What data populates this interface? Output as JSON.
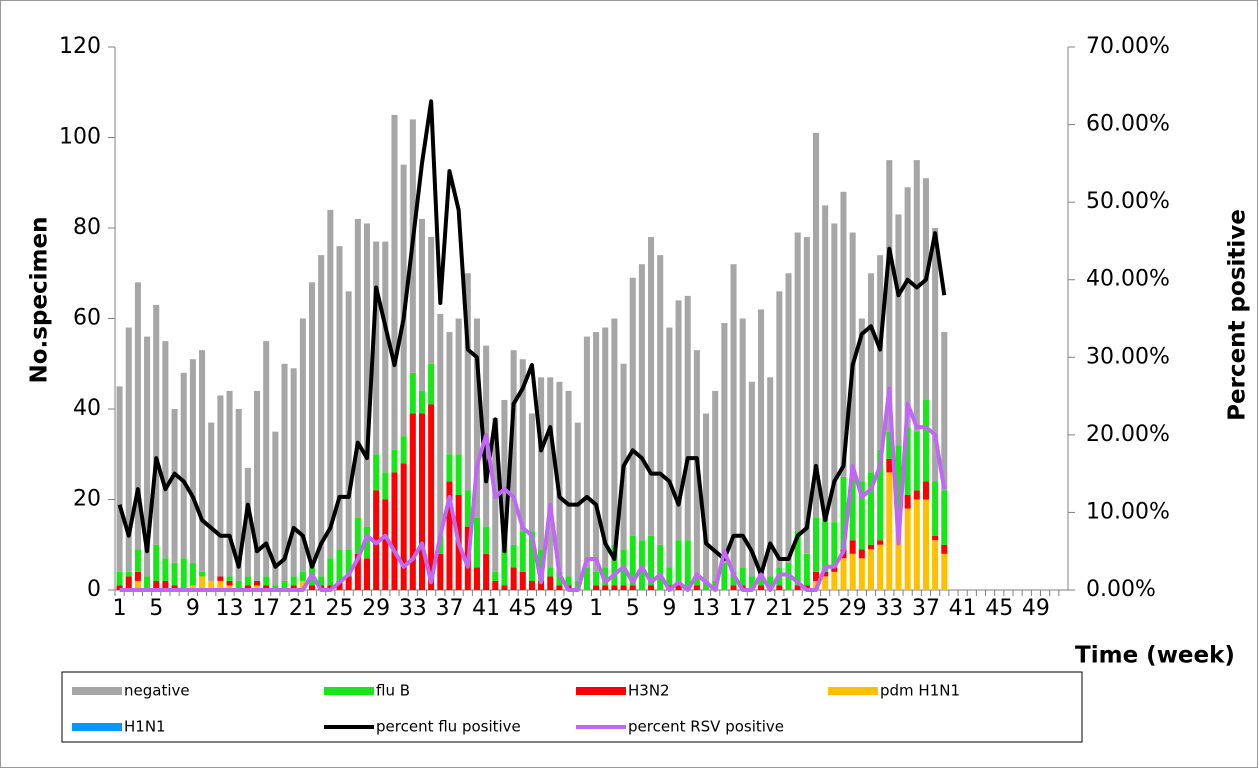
{
  "chart_data": {
    "type": "bar",
    "y_label": "No.specimen",
    "y2_label": "Percent positive",
    "x_label": "Time (week)",
    "categories": [
      "1",
      null,
      null,
      null,
      "5",
      null,
      null,
      null,
      "9",
      null,
      null,
      null,
      "13",
      null,
      null,
      null,
      "17",
      null,
      null,
      null,
      "21",
      null,
      null,
      null,
      "25",
      null,
      null,
      null,
      "29",
      null,
      null,
      null,
      "33",
      null,
      null,
      null,
      "37",
      null,
      null,
      null,
      "41",
      null,
      null,
      null,
      "45",
      null,
      null,
      null,
      "49",
      null,
      null,
      null,
      "1",
      null,
      null,
      null,
      "5",
      null,
      null,
      null,
      "9",
      null,
      null,
      null,
      "13",
      null,
      null,
      null,
      "17",
      null,
      null,
      null,
      "21",
      null,
      null,
      null,
      "25",
      null,
      null,
      null,
      "29",
      null,
      null,
      null,
      "33",
      null,
      null,
      null,
      "37",
      null,
      null,
      null,
      "41",
      null,
      null,
      null,
      "45",
      null,
      null,
      null,
      "49",
      null,
      null,
      null
    ],
    "ylim": [
      0,
      120
    ],
    "yticks": [
      0,
      20,
      40,
      60,
      80,
      100,
      120
    ],
    "y2lim": [
      0,
      70
    ],
    "y2ticks": [
      {
        "value": 0,
        "label": "0.00%"
      },
      {
        "value": 10,
        "label": "10.00%"
      },
      {
        "value": 20,
        "label": "20.00%"
      },
      {
        "value": 30,
        "label": "30.00%"
      },
      {
        "value": 40,
        "label": "40.00%"
      },
      {
        "value": 50,
        "label": "50.00%"
      },
      {
        "value": 60,
        "label": "60.00%"
      },
      {
        "value": 70,
        "label": "70.00%"
      }
    ],
    "stacked": true,
    "legend": "bottom",
    "series": [
      {
        "name": "negative",
        "type": "bar",
        "color": "#a6a6a6",
        "values": [
          41,
          54,
          59,
          53,
          53,
          48,
          34,
          41,
          45,
          49,
          35,
          40,
          41,
          38,
          24,
          42,
          52,
          34,
          48,
          46,
          56,
          63,
          71,
          77,
          67,
          57,
          66,
          67,
          47,
          51,
          74,
          60,
          56,
          38,
          28,
          49,
          27,
          30,
          48,
          44,
          40,
          34,
          33,
          43,
          38,
          26,
          38,
          42,
          42,
          41,
          35,
          51,
          53,
          53,
          50,
          41,
          57,
          61,
          66,
          64,
          53,
          53,
          54,
          50,
          37,
          42,
          53,
          68,
          55,
          43,
          59,
          44,
          61,
          64,
          66,
          70,
          85,
          69,
          66,
          63,
          53,
          36,
          44,
          43,
          60,
          51,
          53,
          60,
          49,
          56,
          35,
          null,
          null,
          null,
          null,
          null,
          null,
          null,
          null,
          null,
          null,
          null,
          null,
          null
        ]
      },
      {
        "name": "flu B",
        "type": "bar",
        "color": "#19e619",
        "values": [
          3,
          1,
          5,
          3,
          8,
          5,
          5,
          7,
          5,
          1,
          0,
          0,
          1,
          2,
          2,
          0,
          2,
          1,
          2,
          2,
          2,
          4,
          2,
          6,
          7,
          6,
          8,
          7,
          8,
          6,
          5,
          6,
          9,
          5,
          9,
          4,
          6,
          9,
          8,
          11,
          6,
          2,
          8,
          5,
          9,
          11,
          7,
          2,
          3,
          2,
          2,
          5,
          3,
          4,
          9,
          8,
          11,
          11,
          11,
          10,
          4,
          10,
          11,
          2,
          2,
          2,
          6,
          3,
          4,
          3,
          2,
          3,
          4,
          6,
          12,
          7,
          12,
          12,
          10,
          16,
          15,
          15,
          16,
          20,
          6,
          16,
          15,
          13,
          18,
          12,
          12,
          null,
          null,
          null,
          null,
          null,
          null,
          null,
          null,
          null,
          null,
          null,
          null,
          null
        ]
      },
      {
        "name": "H3N2",
        "type": "bar",
        "color": "#ff0000",
        "values": [
          1,
          3,
          2,
          0,
          2,
          2,
          1,
          0,
          0,
          0,
          0,
          1,
          1,
          0,
          1,
          1,
          1,
          0,
          0,
          1,
          0,
          1,
          1,
          1,
          2,
          3,
          8,
          7,
          22,
          20,
          26,
          28,
          39,
          39,
          41,
          8,
          24,
          21,
          14,
          5,
          8,
          2,
          1,
          5,
          4,
          2,
          2,
          3,
          1,
          1,
          0,
          0,
          1,
          1,
          1,
          1,
          1,
          0,
          1,
          0,
          1,
          1,
          0,
          1,
          0,
          0,
          0,
          1,
          1,
          0,
          1,
          0,
          1,
          0,
          1,
          1,
          2,
          1,
          1,
          2,
          3,
          2,
          1,
          1,
          3,
          1,
          3,
          2,
          4,
          1,
          2,
          null,
          null,
          null,
          null,
          null,
          null,
          null,
          null,
          null,
          null,
          null,
          null,
          null
        ]
      },
      {
        "name": "pdm H1N1",
        "type": "bar",
        "color": "#ffc000",
        "values": [
          0,
          0,
          2,
          0,
          0,
          0,
          0,
          0,
          1,
          3,
          2,
          2,
          1,
          0,
          0,
          1,
          0,
          0,
          0,
          0,
          2,
          0,
          0,
          0,
          0,
          0,
          0,
          0,
          0,
          0,
          0,
          0,
          0,
          0,
          0,
          0,
          0,
          0,
          0,
          0,
          0,
          0,
          0,
          0,
          0,
          0,
          0,
          0,
          0,
          0,
          0,
          0,
          0,
          0,
          0,
          0,
          0,
          0,
          0,
          0,
          0,
          0,
          0,
          0,
          0,
          0,
          0,
          0,
          0,
          0,
          0,
          0,
          0,
          0,
          0,
          0,
          2,
          3,
          4,
          7,
          8,
          7,
          9,
          10,
          26,
          15,
          18,
          20,
          20,
          11,
          8,
          null,
          null,
          null,
          null,
          null,
          null,
          null,
          null,
          null,
          null,
          null,
          null,
          null
        ]
      },
      {
        "name": "H1N1",
        "type": "bar",
        "color": "#0099ff",
        "values": [
          0,
          0,
          0,
          0,
          0,
          0,
          0,
          0,
          0,
          0,
          0,
          0,
          0,
          0,
          0,
          0,
          0,
          0,
          0,
          0,
          0,
          0,
          0,
          0,
          0,
          0,
          0,
          0,
          0,
          0,
          0,
          0,
          0,
          0,
          0,
          0,
          0,
          0,
          0,
          0,
          0,
          0,
          0,
          0,
          0,
          0,
          0,
          0,
          0,
          0,
          0,
          0,
          0,
          0,
          0,
          0,
          0,
          0,
          0,
          0,
          0,
          0,
          0,
          0,
          0,
          0,
          0,
          0,
          0,
          0,
          0,
          0,
          0,
          0,
          0,
          0,
          0,
          0,
          0,
          0,
          0,
          0,
          0,
          0,
          0,
          0,
          0,
          0,
          0,
          0,
          0,
          null,
          null,
          null,
          null,
          null,
          null,
          null,
          null,
          null,
          null,
          null,
          null,
          null
        ]
      },
      {
        "name": "percent flu positive",
        "type": "line",
        "axis": "y2",
        "color": "#000000",
        "values": [
          11,
          7,
          13,
          5,
          17,
          13,
          15,
          14,
          12,
          9,
          8,
          7,
          7,
          3,
          11,
          5,
          6,
          3,
          4,
          8,
          7,
          3,
          6,
          8,
          12,
          12,
          19,
          17,
          39,
          34,
          29,
          35,
          45,
          55,
          63,
          37,
          54,
          49,
          31,
          30,
          14,
          22,
          5,
          24,
          26,
          29,
          18,
          21,
          12,
          11,
          11,
          12,
          11,
          6,
          4,
          16,
          18,
          17,
          15,
          15,
          14,
          11,
          17,
          17,
          6,
          5,
          4,
          7,
          7,
          5,
          2,
          6,
          4,
          4,
          7,
          8,
          16,
          9,
          14,
          16,
          29,
          33,
          34,
          31,
          44,
          38,
          40,
          39,
          40,
          46,
          38,
          null,
          null,
          null,
          null,
          null,
          null,
          null,
          null,
          null,
          null,
          null,
          null,
          null
        ]
      },
      {
        "name": "percent  RSV positive",
        "type": "line",
        "axis": "y2",
        "color": "#c266f5",
        "values": [
          0,
          0,
          0,
          0,
          0,
          0,
          0,
          0,
          0,
          0,
          0,
          0,
          0,
          0,
          0,
          0,
          0,
          0,
          0,
          0,
          0,
          2,
          0,
          0,
          1,
          2,
          4,
          7,
          6,
          7,
          5,
          3,
          4,
          6,
          1,
          7,
          12,
          6,
          3,
          16,
          20,
          12,
          13,
          12,
          8,
          7,
          1,
          11,
          2,
          0,
          0,
          4,
          4,
          1,
          2,
          3,
          1,
          3,
          1,
          2,
          0,
          1,
          0,
          2,
          1,
          0,
          5,
          2,
          0,
          0,
          2,
          0,
          2,
          2,
          1,
          0,
          0,
          3,
          3,
          5,
          16,
          12,
          13,
          16,
          26,
          6,
          24,
          21,
          21,
          20,
          13,
          null,
          null,
          null,
          null,
          null,
          null,
          null,
          null,
          null,
          null,
          null,
          null,
          null
        ]
      }
    ]
  }
}
